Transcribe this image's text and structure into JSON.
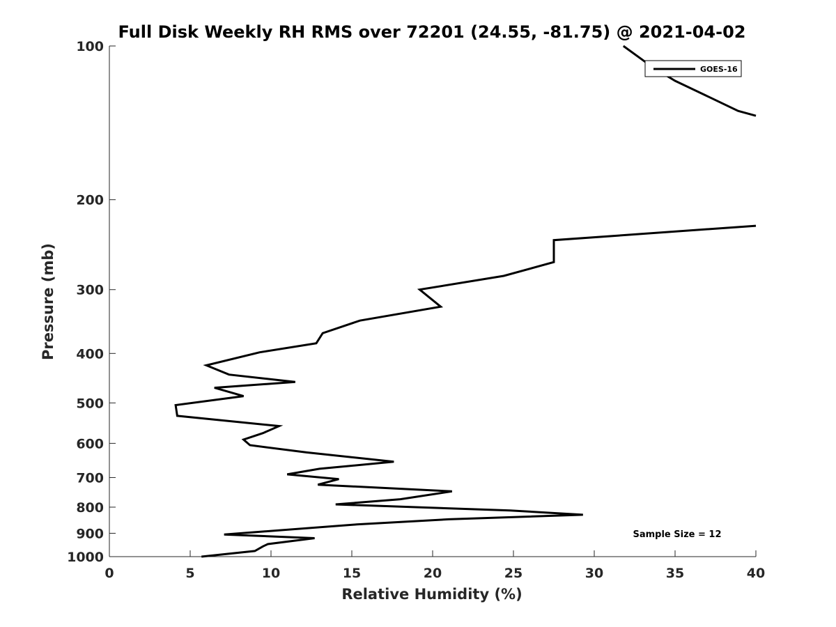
{
  "chart_data": {
    "type": "line",
    "title": "Full Disk Weekly RH RMS over 72201 (24.55, -81.75) @ 2021-04-02",
    "xlabel": "Relative Humidity (%)",
    "ylabel": "Pressure (mb)",
    "xlim": [
      0,
      40
    ],
    "ylim": [
      100,
      1000
    ],
    "yscale": "log",
    "y_reversed": true,
    "xticks": [
      0,
      5,
      10,
      15,
      20,
      25,
      30,
      35,
      40
    ],
    "xtick_labels": [
      "0",
      "5",
      "10",
      "15",
      "20",
      "25",
      "30",
      "35",
      "40"
    ],
    "yticks": [
      100,
      200,
      300,
      400,
      500,
      600,
      700,
      800,
      900,
      1000
    ],
    "ytick_labels": [
      "100",
      "200",
      "300",
      "400",
      "500",
      "600",
      "700",
      "800",
      "900",
      "1000"
    ],
    "grid": false,
    "legend_position": "top-right",
    "annotation": "Sample Size = 12",
    "series": [
      {
        "name": "GOES-16",
        "color": "#000000",
        "points": [
          [
            31.8,
            100
          ],
          [
            33.6,
            110
          ],
          [
            35.0,
            117
          ],
          [
            36.9,
            125
          ],
          [
            38.9,
            134
          ],
          [
            40.0,
            137
          ],
          null,
          [
            40.0,
            225
          ],
          [
            27.5,
            240
          ],
          [
            27.5,
            265
          ],
          [
            24.4,
            282
          ],
          [
            19.2,
            300
          ],
          [
            20.5,
            324
          ],
          [
            15.5,
            345
          ],
          [
            13.2,
            365
          ],
          [
            12.8,
            382
          ],
          [
            9.3,
            398
          ],
          [
            6.0,
            422
          ],
          [
            7.4,
            440
          ],
          [
            11.5,
            455
          ],
          [
            6.5,
            467
          ],
          [
            8.3,
            485
          ],
          [
            4.1,
            505
          ],
          [
            4.2,
            530
          ],
          [
            10.5,
            555
          ],
          [
            9.5,
            573
          ],
          [
            8.3,
            590
          ],
          [
            8.7,
            605
          ],
          [
            12.2,
            625
          ],
          [
            17.6,
            652
          ],
          [
            13.0,
            673
          ],
          [
            11.0,
            690
          ],
          [
            14.2,
            705
          ],
          [
            12.9,
            723
          ],
          [
            21.2,
            745
          ],
          [
            18.0,
            772
          ],
          [
            14.0,
            790
          ],
          [
            24.8,
            812
          ],
          [
            29.3,
            828
          ],
          [
            21.0,
            845
          ],
          [
            15.3,
            865
          ],
          [
            7.1,
            905
          ],
          [
            12.7,
            920
          ],
          [
            9.8,
            945
          ],
          [
            9.5,
            955
          ],
          [
            9.0,
            975
          ],
          [
            5.7,
            1000
          ]
        ]
      }
    ]
  }
}
